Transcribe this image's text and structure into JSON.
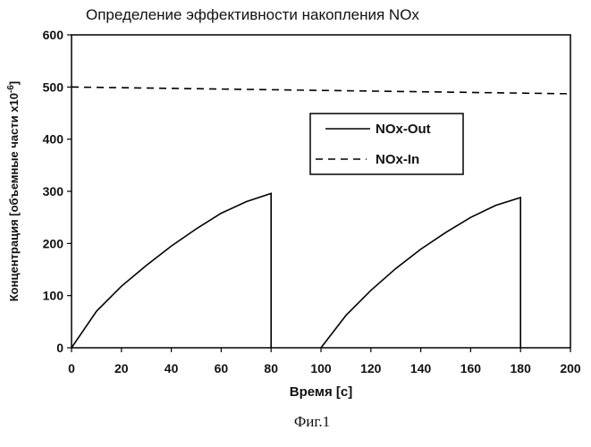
{
  "chart_data": {
    "type": "line",
    "title": "Определение эффективности накопления NOx",
    "xlabel": "Время [c]",
    "ylabel": "Концентрация [объемные части x10",
    "ylabel_exponent": "-6",
    "ylabel_suffix": "]",
    "xlim": [
      0,
      200
    ],
    "ylim": [
      0,
      600
    ],
    "x_ticks": [
      "0",
      "20",
      "40",
      "60",
      "80",
      "100",
      "120",
      "140",
      "160",
      "180",
      "200"
    ],
    "y_ticks": [
      "0",
      "100",
      "200",
      "300",
      "400",
      "500",
      "600"
    ],
    "grid": false,
    "legend_position": "right",
    "series": [
      {
        "name": "NOx-Out",
        "style": "solid",
        "color": "#000000",
        "x": [
          0,
          10,
          20,
          30,
          40,
          50,
          60,
          70,
          80,
          80,
          null,
          100,
          110,
          120,
          130,
          140,
          150,
          160,
          170,
          180,
          180
        ],
        "y": [
          0,
          70,
          118,
          158,
          195,
          228,
          258,
          280,
          296,
          0,
          null,
          0,
          62,
          110,
          152,
          189,
          221,
          250,
          273,
          288,
          0
        ]
      },
      {
        "name": "NOx-In",
        "style": "dashed",
        "color": "#000000",
        "x": [
          0,
          200
        ],
        "y": [
          500,
          487
        ]
      }
    ]
  },
  "caption": "Фиг.1"
}
